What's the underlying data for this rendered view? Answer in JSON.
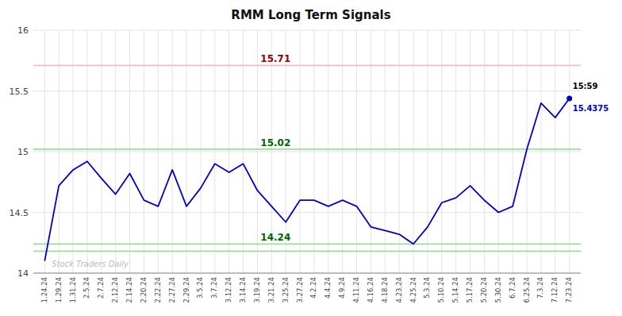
{
  "chart_data": {
    "type": "line",
    "title": "RMM Long Term Signals",
    "categories": [
      "1.24.24",
      "1.29.24",
      "1.31.24",
      "2.5.24",
      "2.7.24",
      "2.12.24",
      "2.14.24",
      "2.20.24",
      "2.22.24",
      "2.27.24",
      "2.29.24",
      "3.5.24",
      "3.7.24",
      "3.12.24",
      "3.14.24",
      "3.19.24",
      "3.21.24",
      "3.25.24",
      "3.27.24",
      "4.2.24",
      "4.4.24",
      "4.9.24",
      "4.11.24",
      "4.16.24",
      "4.18.24",
      "4.23.24",
      "4.25.24",
      "5.3.24",
      "5.10.24",
      "5.14.24",
      "5.17.24",
      "5.20.24",
      "5.30.24",
      "6.7.24",
      "6.25.24",
      "7.3.24",
      "7.12.24",
      "7.23.24"
    ],
    "values": [
      14.1,
      14.72,
      14.85,
      14.92,
      14.78,
      14.65,
      14.82,
      14.6,
      14.55,
      14.85,
      14.55,
      14.7,
      14.9,
      14.83,
      14.9,
      14.68,
      14.55,
      14.42,
      14.6,
      14.6,
      14.55,
      14.6,
      14.55,
      14.38,
      14.35,
      14.32,
      14.24,
      14.38,
      14.58,
      14.62,
      14.72,
      14.6,
      14.5,
      14.55,
      15.02,
      15.4,
      15.28,
      15.4375
    ],
    "color": "#0000cc",
    "hlines": [
      {
        "value": 15.71,
        "color": "#ffbbbb",
        "label": "15.71",
        "label_color": "#990000"
      },
      {
        "value": 15.02,
        "color": "#99dd99",
        "label": "15.02",
        "label_color": "#006600"
      },
      {
        "value": 14.24,
        "color": "#99dd99",
        "label": "14.24",
        "label_color": "#006600"
      },
      {
        "value": 14.18,
        "color": "#99dd99"
      }
    ],
    "annotations": [
      {
        "text": "15:59",
        "color": "#000000"
      },
      {
        "text": "15.4375",
        "color": "#0000cc"
      }
    ],
    "watermark": "Stock Traders Daily",
    "ylim": [
      14.0,
      16.0
    ],
    "yticks": [
      14,
      14.5,
      15,
      15.5,
      16
    ],
    "grid": true
  }
}
